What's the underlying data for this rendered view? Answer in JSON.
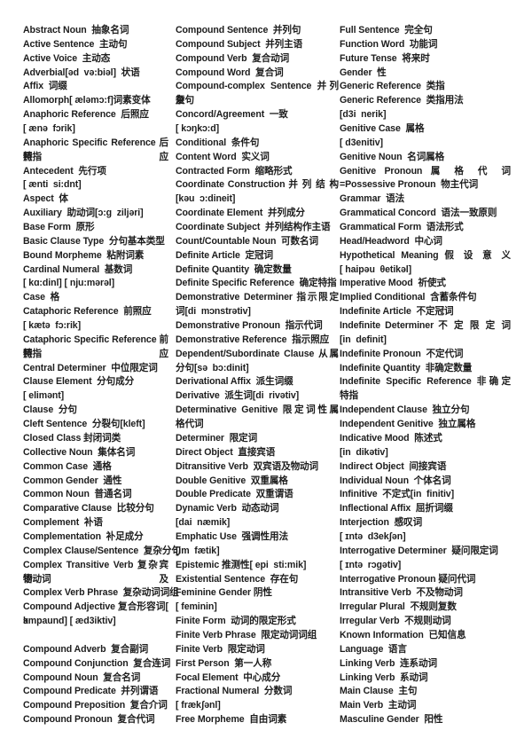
{
  "page": {
    "background_color": "#ffffff",
    "text_color": "#1d1d1d",
    "description": "English-Chinese glossary of grammatical terms, three columns"
  },
  "glossary": {
    "columns": [
      {
        "lines": [
          {
            "t": "Abstract Noun  抽象名词",
            "j": false
          },
          {
            "t": "Active Sentence  主动句",
            "j": false
          },
          {
            "t": "Active Voice  主动态",
            "j": false
          },
          {
            "t": "Adverbial[əd  və:biəl]  状语",
            "j": false
          },
          {
            "t": "Affix  词缀",
            "j": false
          },
          {
            "t": "Allomorph[ æləmɔ:f]词素变体",
            "j": false
          },
          {
            "t": "Anaphoric Reference  后照应",
            "j": false
          },
          {
            "t": "[ ænə  fɔrik]",
            "j": false
          },
          {
            "t": "Anaphoric Specific Reference 后照应",
            "j": true
          },
          {
            "t": "特指",
            "j": false
          },
          {
            "t": "Antecedent  先行项",
            "j": false
          },
          {
            "t": "[ ænti  si:dnt]",
            "j": false
          },
          {
            "t": "Aspect  体",
            "j": false
          },
          {
            "t": "Auxiliary  助动词[ɔ:g  ziljəri]",
            "j": false
          },
          {
            "t": "Base Form  原形",
            "j": false
          },
          {
            "t": "Basic Clause Type  分句基本类型",
            "j": false
          },
          {
            "t": "Bound Morpheme  粘附词素",
            "j": false
          },
          {
            "t": "Cardinal Numeral  基数词",
            "j": false
          },
          {
            "t": "[ kɑ:dinl] [ nju:mərəl]",
            "j": false
          },
          {
            "t": "Case  格",
            "j": false
          },
          {
            "t": "Cataphoric Reference  前照应",
            "j": false
          },
          {
            "t": "[ kætə  fɔ:rik]",
            "j": false
          },
          {
            "t": "Cataphoric Specific Reference 前照应",
            "j": true
          },
          {
            "t": "特指",
            "j": false
          },
          {
            "t": "Central Determiner  中位限定词",
            "j": false
          },
          {
            "t": "Clause Element  分句成分",
            "j": false
          },
          {
            "t": "[ elimənt]",
            "j": false
          },
          {
            "t": "Clause  分句",
            "j": false
          },
          {
            "t": "Cleft Sentence  分裂句[kleft]",
            "j": false
          },
          {
            "t": "Closed Class 封闭词类",
            "j": false
          },
          {
            "t": "Collective Noun  集体名词",
            "j": false
          },
          {
            "t": "Common Case  通格",
            "j": false
          },
          {
            "t": "Common Gender  通性",
            "j": false
          },
          {
            "t": "Common Noun  普通名词",
            "j": false
          },
          {
            "t": "Comparative Clause  比较分句",
            "j": false
          },
          {
            "t": "Complement  补语",
            "j": false
          },
          {
            "t": "Complementation  补足成分",
            "j": false
          },
          {
            "t": "Complex Clause/Sentence  复杂分句",
            "j": false
          },
          {
            "t": "Complex Transitive Verb 复杂宾语及",
            "j": true
          },
          {
            "t": "物动词",
            "j": false
          },
          {
            "t": "Complex Verb Phrase  复杂动词词组",
            "j": false
          },
          {
            "t": "Compound Adjective 复合形容词[ k",
            "j": true
          },
          {
            "t": "ɔmpaund] [ æd3iktiv]",
            "j": false
          },
          {
            "t": "",
            "j": false
          },
          {
            "t": "Compound Adverb  复合副词",
            "j": false
          },
          {
            "t": "Compound Conjunction  复合连词",
            "j": false
          },
          {
            "t": "Compound Noun  复合名词",
            "j": false
          },
          {
            "t": "Compound Predicate  并列谓语",
            "j": false
          },
          {
            "t": "Compound Preposition  复合介词",
            "j": false
          },
          {
            "t": "Compound Pronoun  复合代词",
            "j": false
          }
        ]
      },
      {
        "lines": [
          {
            "t": "Compound Sentence  并列句",
            "j": false
          },
          {
            "t": "Compound Subject  并列主语",
            "j": false
          },
          {
            "t": "Compound Verb  复合动词",
            "j": false
          },
          {
            "t": "Compound Word  复合词",
            "j": false
          },
          {
            "t": "Compound-complex Sentence 并列复",
            "j": true
          },
          {
            "t": "杂句",
            "j": false
          },
          {
            "t": "Concord/Agreement  一致",
            "j": false
          },
          {
            "t": "[ kɔŋkɔ:d]",
            "j": false
          },
          {
            "t": "Conditional  条件句",
            "j": false
          },
          {
            "t": "Content Word  实义词",
            "j": false
          },
          {
            "t": "Contracted Form  缩略形式",
            "j": false
          },
          {
            "t": "Coordinate Construction 并 列 结 构",
            "j": true
          },
          {
            "t": "[kəu  ɔ:dineit]",
            "j": false
          },
          {
            "t": "Coordinate Element  并列成分",
            "j": false
          },
          {
            "t": "Coordinate Subject  并列结构作主语",
            "j": false
          },
          {
            "t": "Count/Countable Noun  可数名词",
            "j": false
          },
          {
            "t": "Definite Article  定冠词",
            "j": false
          },
          {
            "t": "Definite Quantity  确定数量",
            "j": false
          },
          {
            "t": "Definite Specific Reference  确定特指",
            "j": false
          },
          {
            "t": "Demonstrative Determiner 指示限定",
            "j": true
          },
          {
            "t": "词[di  mɔnstrətiv]",
            "j": false
          },
          {
            "t": "Demonstrative Pronoun  指示代词",
            "j": false
          },
          {
            "t": "Demonstrative Reference  指示照应",
            "j": false
          },
          {
            "t": "Dependent/Subordinate Clause 从属",
            "j": true
          },
          {
            "t": "分句[sə  bɔ:dinit]",
            "j": false
          },
          {
            "t": "Derivational Affix  派生词缀",
            "j": false
          },
          {
            "t": "Derivative  派生词[di  rivətiv]",
            "j": false
          },
          {
            "t": "Determinative Genitive 限定词性属",
            "j": true
          },
          {
            "t": "格代词",
            "j": false
          },
          {
            "t": "Determiner  限定词",
            "j": false
          },
          {
            "t": "Direct Object  直接宾语",
            "j": false
          },
          {
            "t": "Ditransitive Verb  双宾语及物动词",
            "j": false
          },
          {
            "t": "Double Genitive  双重属格",
            "j": false
          },
          {
            "t": "Double Predicate  双重谓语",
            "j": false
          },
          {
            "t": "Dynamic Verb  动态动词",
            "j": false
          },
          {
            "t": "[dai  næmik]",
            "j": false
          },
          {
            "t": "Emphatic Use  强调性用法",
            "j": false
          },
          {
            "t": "[im  fætik]",
            "j": false
          },
          {
            "t": "Epistemic 推测性[ epi  sti:mik]",
            "j": false
          },
          {
            "t": "Existential Sentence  存在句",
            "j": false
          },
          {
            "t": "Feminine Gender 阴性",
            "j": false
          },
          {
            "t": "[ feminin]",
            "j": false
          },
          {
            "t": "Finite Form  动词的限定形式",
            "j": false
          },
          {
            "t": "Finite Verb Phrase  限定动词词组",
            "j": false
          },
          {
            "t": "Finite Verb  限定动词",
            "j": false
          },
          {
            "t": "First Person  第一人称",
            "j": false
          },
          {
            "t": "Focal Element  中心成分",
            "j": false
          },
          {
            "t": "Fractional Numeral  分数词",
            "j": false
          },
          {
            "t": "[ frækʃənl]",
            "j": false
          },
          {
            "t": "Free Morpheme  自由词素",
            "j": false
          }
        ]
      },
      {
        "lines": [
          {
            "t": "Full Sentence  完全句",
            "j": false
          },
          {
            "t": "Function Word  功能词",
            "j": false
          },
          {
            "t": "Future Tense  将来时",
            "j": false
          },
          {
            "t": "Gender  性",
            "j": false
          },
          {
            "t": "Generic Reference  类指",
            "j": false
          },
          {
            "t": "Generic Reference  类指用法",
            "j": false
          },
          {
            "t": "[d3i  nerik]",
            "j": false
          },
          {
            "t": "Genitive Case  属格",
            "j": false
          },
          {
            "t": "[ d3enitiv]",
            "j": false
          },
          {
            "t": "Genitive Noun  名词属格",
            "j": false
          },
          {
            "t": "Genitive Pronoun 属 格 代 词",
            "j": true
          },
          {
            "t": "=Possessive Pronoun  物主代词",
            "j": false
          },
          {
            "t": "Grammar  语法",
            "j": false
          },
          {
            "t": "Grammatical Concord  语法一致原则",
            "j": false
          },
          {
            "t": "Grammatical Form  语法形式",
            "j": false
          },
          {
            "t": "Head/Headword  中心词",
            "j": false
          },
          {
            "t": "Hypothetical Meaning 假 设 意 义",
            "j": true
          },
          {
            "t": "[ haipəu  θetikəl]",
            "j": false
          },
          {
            "t": "Imperative Mood  祈使式",
            "j": false
          },
          {
            "t": "Implied Conditional  含蓄条件句",
            "j": false
          },
          {
            "t": "Indefinite Article  不定冠词",
            "j": false
          },
          {
            "t": "Indefinite Determiner 不 定 限 定 词",
            "j": true
          },
          {
            "t": "[in  definit]",
            "j": false
          },
          {
            "t": "Indefinite Pronoun  不定代词",
            "j": false
          },
          {
            "t": "Indefinite Quantity  非确定数量",
            "j": false
          },
          {
            "t": "Indefinite Specific Reference 非确定",
            "j": true
          },
          {
            "t": "特指",
            "j": false
          },
          {
            "t": "Independent Clause  独立分句",
            "j": false
          },
          {
            "t": "Independent Genitive  独立属格",
            "j": false
          },
          {
            "t": "Indicative Mood  陈述式",
            "j": false
          },
          {
            "t": "[in  dikətiv]",
            "j": false
          },
          {
            "t": "Indirect Object  间接宾语",
            "j": false
          },
          {
            "t": "Individual Noun  个体名词",
            "j": false
          },
          {
            "t": "Infinitive  不定式[in  finitiv]",
            "j": false
          },
          {
            "t": "Inflectional Affix  屈折词缀",
            "j": false
          },
          {
            "t": "Interjection  感叹词",
            "j": false
          },
          {
            "t": "[ ɪntə  d3ekʃən]",
            "j": false
          },
          {
            "t": "Interrogative Determiner  疑问限定词",
            "j": false
          },
          {
            "t": "[ ɪntə  rɔgətiv]",
            "j": false
          },
          {
            "t": "Interrogative Pronoun 疑问代词",
            "j": false
          },
          {
            "t": "Intransitive Verb  不及物动词",
            "j": false
          },
          {
            "t": "Irregular Plural  不规则复数",
            "j": false
          },
          {
            "t": "Irregular Verb  不规则动词",
            "j": false
          },
          {
            "t": "Known Information  已知信息",
            "j": false
          },
          {
            "t": "Language  语言",
            "j": false
          },
          {
            "t": "Linking Verb  连系动词",
            "j": false
          },
          {
            "t": "Linking Verb  系动词",
            "j": false
          },
          {
            "t": "Main Clause  主句",
            "j": false
          },
          {
            "t": "Main Verb  主动词",
            "j": false
          },
          {
            "t": "Masculine Gender  阳性",
            "j": false
          }
        ]
      }
    ]
  }
}
